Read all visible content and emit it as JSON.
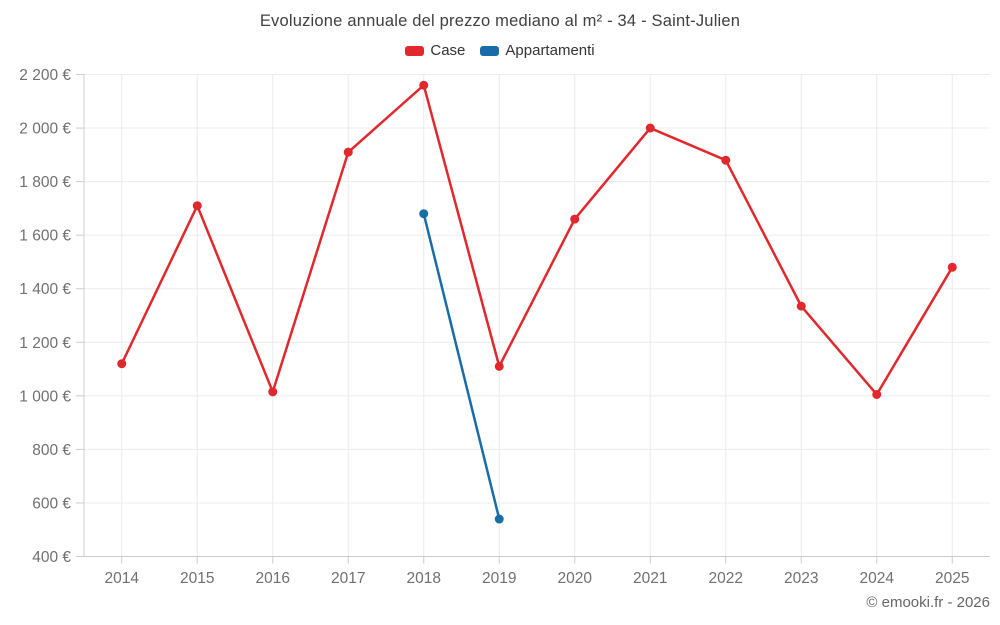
{
  "page": {
    "footer": "© emooki.fr - 2026"
  },
  "chart_data": {
    "type": "line",
    "title": "Evoluzione annuale del prezzo mediano al m² - 34 - Saint-Julien",
    "categories": [
      "2014",
      "2015",
      "2016",
      "2017",
      "2018",
      "2019",
      "2020",
      "2021",
      "2022",
      "2023",
      "2024",
      "2025"
    ],
    "series": [
      {
        "name": "Case",
        "color": "#e1282d",
        "values": [
          1120,
          1710,
          1015,
          1910,
          2160,
          1110,
          1660,
          2000,
          1880,
          1335,
          1005,
          1480
        ]
      },
      {
        "name": "Appartamenti",
        "color": "#1a6ca8",
        "values": [
          null,
          null,
          null,
          null,
          1680,
          540,
          null,
          null,
          null,
          null,
          null,
          null
        ]
      }
    ],
    "ylim": [
      400,
      2200
    ],
    "yticks": [
      400,
      600,
      800,
      1000,
      1200,
      1400,
      1600,
      1800,
      2000,
      2200
    ],
    "ytick_labels": [
      "400 €",
      "600 €",
      "800 €",
      "1 000 €",
      "1 200 €",
      "1 400 €",
      "1 600 €",
      "1 800 €",
      "2 000 €",
      "2 200 €"
    ],
    "grid": true,
    "legend_position": "top"
  },
  "style": {
    "background": "#ffffff",
    "grid_color": "#ececec",
    "axis_color": "#cccccc",
    "tick_label_color": "#707070",
    "title_color": "#404040",
    "legend_text_color": "#333333",
    "footer_color": "#666666"
  }
}
